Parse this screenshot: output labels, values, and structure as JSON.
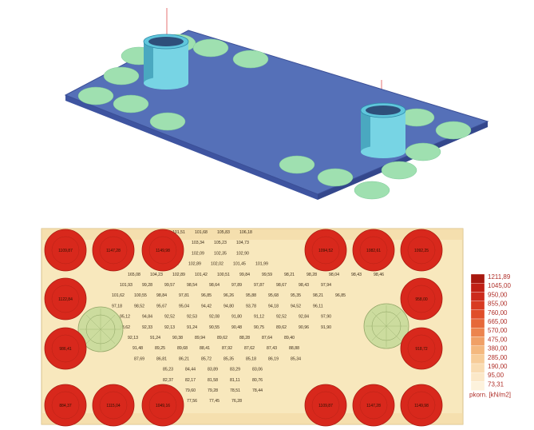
{
  "model_view": {
    "slab_color": "#5570b8",
    "pile_color": "#9fe0b0",
    "core_color": "#77d4e4"
  },
  "pressure_plan": {
    "background": "#f8e8bd",
    "pile_fill": "#d8281c",
    "core_fill": "#c9dc9c",
    "pile_labels": [
      "1109,87",
      "1147,28",
      "1149,98",
      "1094,52",
      "1082,61",
      "1092,25",
      "1122,84",
      "958,00",
      "986,41",
      "918,72",
      "884,37",
      "1115,04",
      "1049,16"
    ],
    "value_rows": [
      [
        "101,51",
        "101,68",
        "105,83",
        "106,18"
      ],
      [
        "105,64",
        "103,34",
        "105,23",
        "104,73"
      ],
      [
        "103,01",
        "102,09",
        "102,35",
        "102,90"
      ],
      [
        "103,52",
        "102,89",
        "102,02",
        "101,45",
        "101,99"
      ],
      [
        "165,08",
        "104,23",
        "102,89",
        "101,42",
        "100,51",
        "99,84",
        "99,59",
        "98,21",
        "98,28",
        "98,04",
        "98,43",
        "98,46"
      ],
      [
        "101,93",
        "99,28",
        "99,57",
        "98,54",
        "98,64",
        "97,89",
        "97,87",
        "98,67",
        "98,43",
        "97,94"
      ],
      [
        "101,62",
        "100,55",
        "98,84",
        "97,81",
        "96,85",
        "96,26",
        "95,88",
        "95,68",
        "95,35",
        "98,21",
        "96,85"
      ],
      [
        "97,18",
        "98,52",
        "95,67",
        "95,04",
        "94,42",
        "94,80",
        "93,78",
        "94,18",
        "94,52",
        "96,11"
      ],
      [
        "95,12",
        "94,84",
        "92,52",
        "92,53",
        "92,08",
        "91,80",
        "91,12",
        "92,52",
        "92,84",
        "97,90"
      ],
      [
        "98,62",
        "92,33",
        "92,13",
        "91,24",
        "90,55",
        "90,48",
        "90,75",
        "89,62",
        "90,96",
        "91,90"
      ],
      [
        "92,13",
        "91,24",
        "90,38",
        "89,94",
        "89,62",
        "88,28",
        "87,64",
        "89,40"
      ],
      [
        "91,48",
        "89,25",
        "89,68",
        "88,41",
        "87,92",
        "87,62",
        "87,43",
        "88,88"
      ],
      [
        "87,69",
        "86,81",
        "86,21",
        "85,72",
        "85,35",
        "85,18",
        "86,19",
        "85,34"
      ],
      [
        "85,23",
        "84,44",
        "83,89",
        "83,29",
        "83,06"
      ],
      [
        "82,37",
        "82,17",
        "81,58",
        "81,11",
        "80,76"
      ],
      [
        "80,00",
        "79,60",
        "79,28",
        "78,51",
        "78,44"
      ],
      [
        "79,41",
        "77,56",
        "77,45",
        "76,28"
      ]
    ],
    "legend": {
      "levels": [
        "1211,89",
        "1045,00",
        "950,00",
        "855,00",
        "760,00",
        "665,00",
        "570,00",
        "475,00",
        "380,00",
        "285,00",
        "190,00",
        "95,00",
        "73,31"
      ],
      "colors": [
        "#a8180f",
        "#c01f14",
        "#cc2a1c",
        "#d83a22",
        "#e04e2a",
        "#e6683a",
        "#ec844e",
        "#f0a066",
        "#f4b87e",
        "#f7cc98",
        "#f9dcb2",
        "#fbe8c8",
        "#fdf2dc"
      ],
      "title": "pkorn. [kN/m2]"
    }
  }
}
